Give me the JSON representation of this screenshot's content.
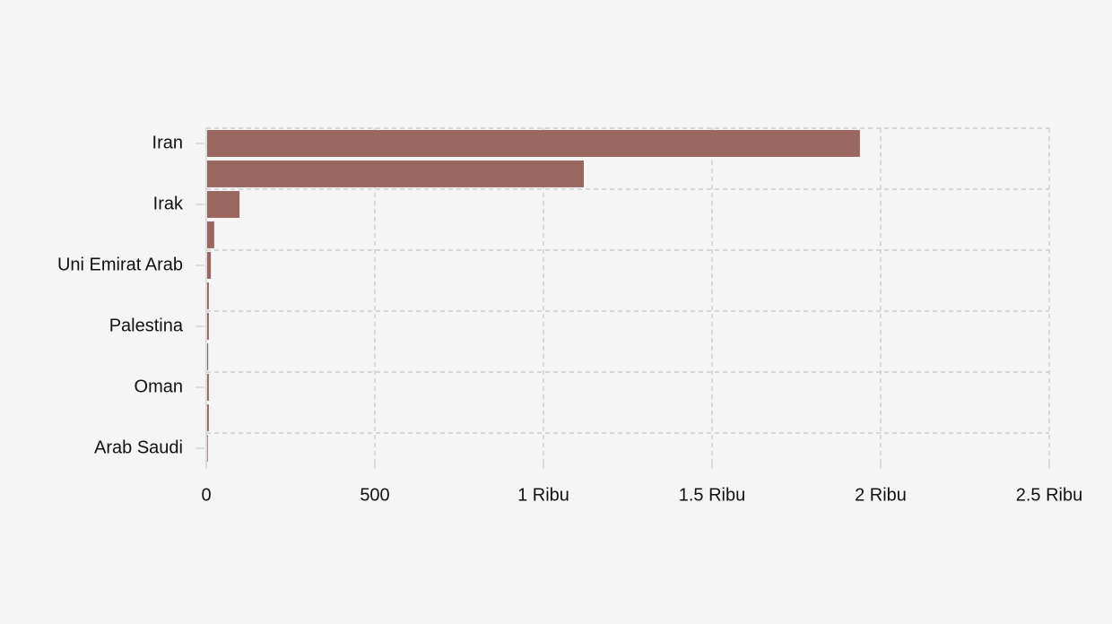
{
  "chart_data": {
    "type": "bar",
    "orientation": "horizontal",
    "categories": [
      "Iran",
      null,
      "Irak",
      null,
      "Uni Emirat Arab",
      null,
      "Palestina",
      null,
      "Oman",
      null,
      "Arab Saudi"
    ],
    "values": [
      1936,
      1117,
      96,
      21,
      11,
      5,
      5,
      3,
      5,
      5,
      2
    ],
    "color": "#9a6660",
    "xlim": [
      0,
      2500
    ],
    "xticks": [
      0,
      500,
      {
        "value": 1000,
        "label": "1 Ribu"
      },
      {
        "value": 1500,
        "label": "1.5 Ribu"
      },
      {
        "value": 2000,
        "label": "2 Ribu"
      },
      {
        "value": 2500,
        "label": "2.5 Ribu"
      }
    ],
    "grid": true
  }
}
